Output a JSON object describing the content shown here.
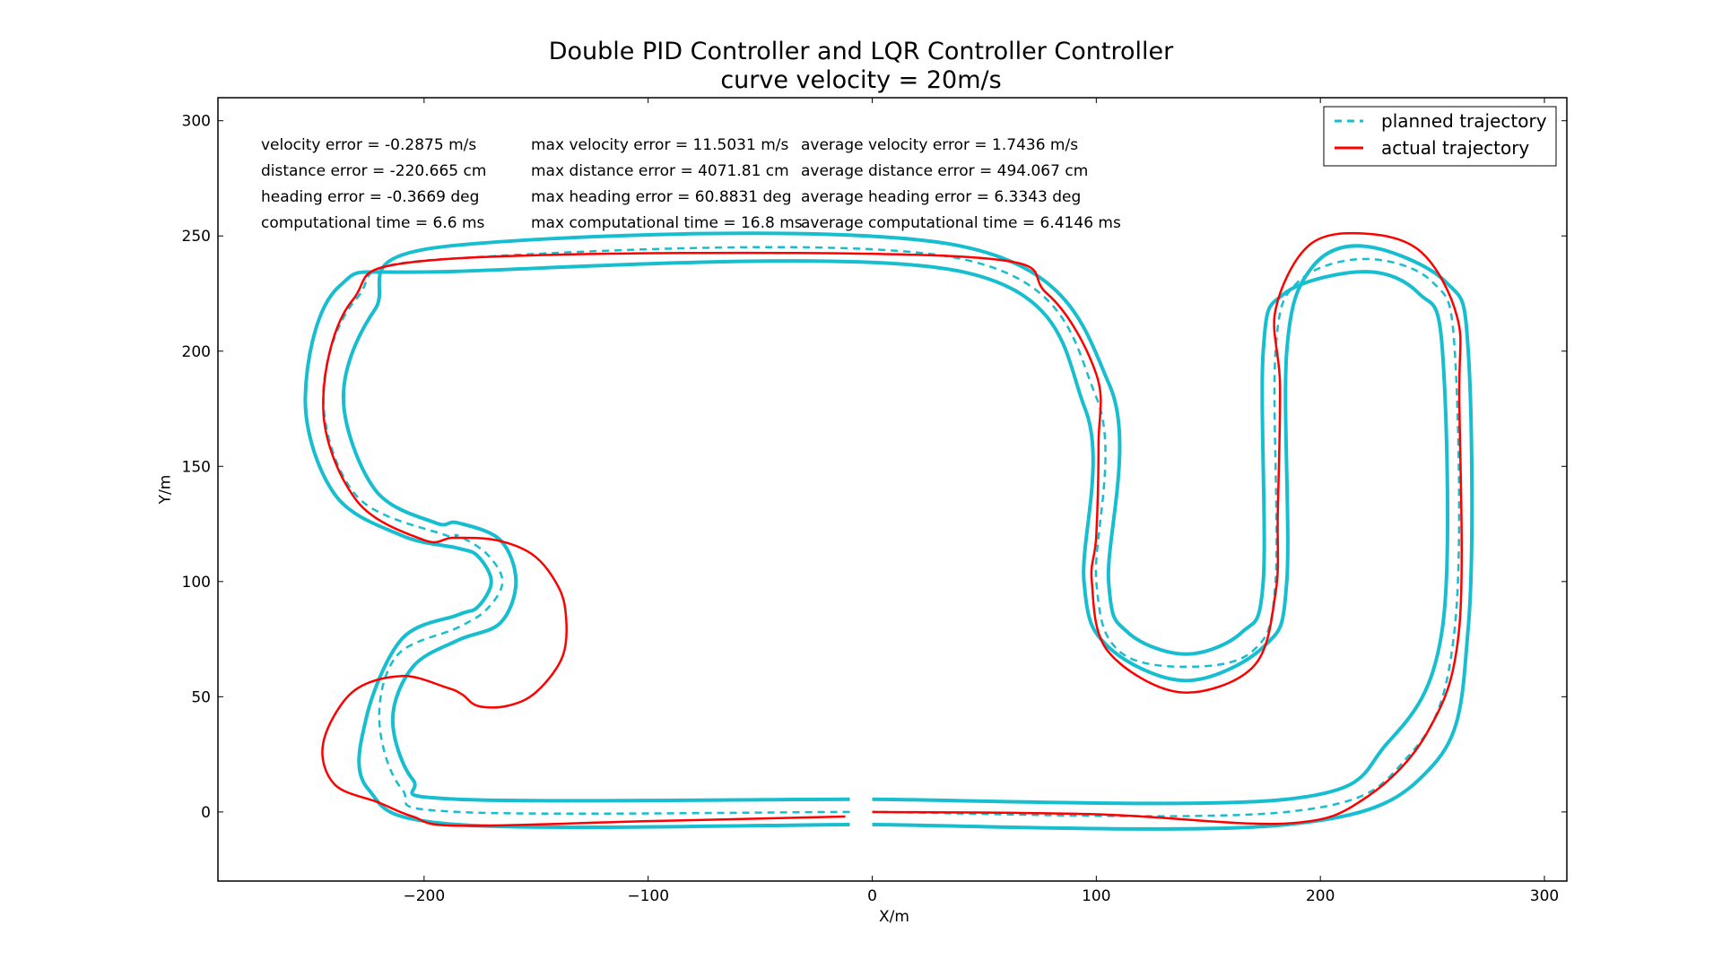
{
  "chart_data": {
    "type": "line",
    "title": "Double PID Controller and LQR Controller Controller",
    "subtitle": "curve velocity = 20m/s",
    "xlabel": "X/m",
    "ylabel": "Y/m",
    "xlim": [
      -292,
      310
    ],
    "ylim": [
      -30,
      310
    ],
    "xticks": [
      -200,
      -100,
      0,
      100,
      200,
      300
    ],
    "xtick_labels": [
      "−200",
      "−100",
      "0",
      "100",
      "200",
      "300"
    ],
    "yticks": [
      0,
      50,
      100,
      150,
      200,
      250,
      300
    ],
    "ytick_labels": [
      "0",
      "50",
      "100",
      "150",
      "200",
      "250",
      "300"
    ],
    "grid": false,
    "legend_placement": "top-right",
    "legend": [
      {
        "label": "planned trajectory",
        "style": "dashed",
        "color": "#17becf"
      },
      {
        "label": "actual trajectory",
        "style": "solid",
        "color": "#ff0000"
      }
    ],
    "stats": [
      [
        "velocity error = -0.2875 m/s",
        "max velocity error = 11.5031 m/s",
        "average velocity error = 1.7436 m/s"
      ],
      [
        "distance error = -220.665 cm",
        "max distance error = 4071.81 cm",
        "average distance error = 494.067 cm"
      ],
      [
        "heading error = -0.3669 deg",
        "max heading error = 60.8831 deg",
        "average heading error = 6.3343 deg"
      ],
      [
        "computational time = 6.6 ms",
        "max computational time = 16.8 ms",
        "average computational time = 6.4146 ms"
      ]
    ],
    "series": [
      {
        "name": "planned trajectory",
        "color": "#17becf",
        "style": "dashed",
        "points": [
          [
            -10,
            0
          ],
          [
            -185,
            0
          ],
          [
            -210,
            10
          ],
          [
            -220,
            40
          ],
          [
            -212,
            68
          ],
          [
            -185,
            80
          ],
          [
            -172,
            88
          ],
          [
            -165,
            100
          ],
          [
            -172,
            112
          ],
          [
            -185,
            120
          ],
          [
            -190,
            120
          ],
          [
            -230,
            137
          ],
          [
            -245,
            180
          ],
          [
            -230,
            223
          ],
          [
            -190,
            240
          ],
          [
            40,
            240
          ],
          [
            100,
            180
          ],
          [
            100,
            100
          ],
          [
            110,
            70
          ],
          [
            140,
            63
          ],
          [
            170,
            70
          ],
          [
            180,
            100
          ],
          [
            180,
            200
          ],
          [
            190,
            230
          ],
          [
            220,
            240
          ],
          [
            250,
            230
          ],
          [
            260,
            200
          ],
          [
            260,
            80
          ],
          [
            240,
            25
          ],
          [
            185,
            0
          ],
          [
            0,
            0
          ]
        ]
      },
      {
        "name": "actual trajectory",
        "color": "#ff0000",
        "style": "solid",
        "points": [
          [
            -12,
            -2
          ],
          [
            -100,
            -4
          ],
          [
            -185,
            -6
          ],
          [
            -205,
            -2
          ],
          [
            -220,
            4
          ],
          [
            -240,
            12
          ],
          [
            -245,
            30
          ],
          [
            -232,
            52
          ],
          [
            -210,
            59
          ],
          [
            -190,
            54
          ],
          [
            -183,
            51
          ],
          [
            -176,
            46
          ],
          [
            -163,
            46
          ],
          [
            -150,
            52
          ],
          [
            -138,
            68
          ],
          [
            -137,
            88
          ],
          [
            -142,
            101
          ],
          [
            -152,
            112
          ],
          [
            -168,
            118
          ],
          [
            -187,
            119
          ],
          [
            -200,
            118
          ],
          [
            -230,
            135
          ],
          [
            -245,
            175
          ],
          [
            -232,
            222
          ],
          [
            -190,
            240
          ],
          [
            40,
            241
          ],
          [
            78,
            225
          ],
          [
            100,
            190
          ],
          [
            101,
            160
          ],
          [
            100,
            120
          ],
          [
            98,
            100
          ],
          [
            105,
            70
          ],
          [
            137,
            52
          ],
          [
            170,
            63
          ],
          [
            180,
            95
          ],
          [
            181,
            130
          ],
          [
            182,
            185
          ],
          [
            180,
            218
          ],
          [
            195,
            246
          ],
          [
            220,
            251
          ],
          [
            245,
            243
          ],
          [
            261,
            215
          ],
          [
            262,
            180
          ],
          [
            262,
            80
          ],
          [
            248,
            35
          ],
          [
            220,
            6
          ],
          [
            185,
            -5
          ],
          [
            100,
            -1
          ],
          [
            0,
            0
          ]
        ]
      },
      {
        "name": "",
        "color": "#17becf",
        "style": "solid",
        "points": [
          [
            -10,
            -5.5
          ],
          [
            -185,
            -5.5
          ],
          [
            -225,
            10
          ],
          [
            -226,
            40
          ],
          [
            -210,
            75
          ],
          [
            -185,
            85.5
          ],
          [
            -176,
            89
          ],
          [
            -170,
            100
          ],
          [
            -176,
            111
          ],
          [
            -185,
            114.5
          ],
          [
            -210,
            120
          ],
          [
            -240,
            138
          ],
          [
            -253,
            180
          ],
          [
            -238,
            228
          ],
          [
            -190,
            234.5
          ],
          [
            40,
            234.5
          ],
          [
            95,
            175
          ],
          [
            94.5,
            100
          ],
          [
            105,
            72
          ],
          [
            140,
            57
          ],
          [
            175,
            72
          ],
          [
            185,
            100
          ],
          [
            185,
            200
          ],
          [
            196,
            236
          ],
          [
            220,
            245.5
          ],
          [
            256,
            230
          ],
          [
            266,
            200
          ],
          [
            266,
            80
          ],
          [
            250,
            20
          ],
          [
            185,
            -5.5
          ],
          [
            0,
            -5.5
          ]
        ]
      },
      {
        "name": "",
        "color": "#17becf",
        "style": "solid",
        "points": [
          [
            -10,
            5.5
          ],
          [
            -185,
            5.5
          ],
          [
            -205,
            14
          ],
          [
            -214,
            40
          ],
          [
            -205,
            63
          ],
          [
            -185,
            74.5
          ],
          [
            -166,
            82
          ],
          [
            -159,
            100
          ],
          [
            -166,
            118
          ],
          [
            -185,
            125.5
          ],
          [
            -195,
            125.5
          ],
          [
            -222,
            140
          ],
          [
            -236,
            180
          ],
          [
            -222,
            218
          ],
          [
            -190,
            245.5
          ],
          [
            40,
            245.5
          ],
          [
            106,
            185
          ],
          [
            105.5,
            100
          ],
          [
            114,
            78
          ],
          [
            140,
            68.5
          ],
          [
            165,
            78
          ],
          [
            174.5,
            100
          ],
          [
            174.5,
            200
          ],
          [
            184,
            225
          ],
          [
            220,
            234.5
          ],
          [
            244,
            225
          ],
          [
            254.5,
            200
          ],
          [
            254.5,
            80
          ],
          [
            230,
            30
          ],
          [
            185,
            5.5
          ],
          [
            0,
            5.5
          ]
        ]
      }
    ]
  }
}
